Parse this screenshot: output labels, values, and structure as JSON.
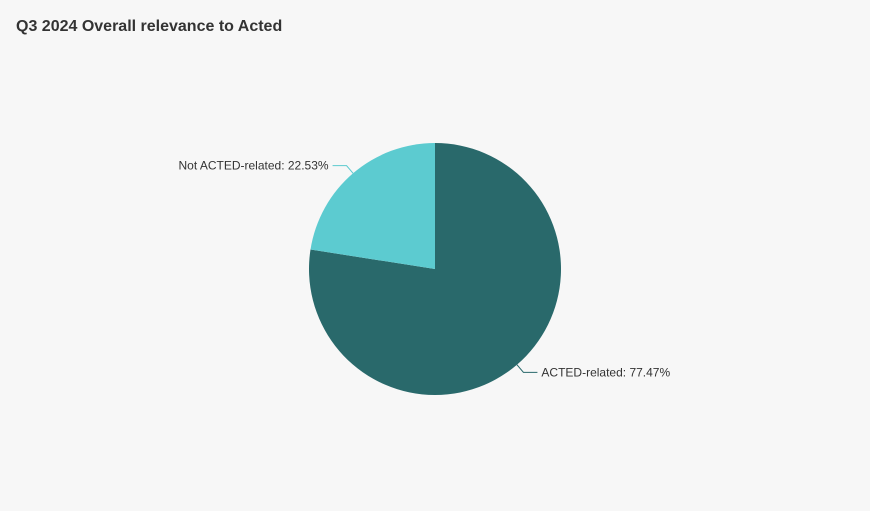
{
  "chart_data": {
    "type": "pie",
    "title": "Q3 2024 Overall relevance to Acted",
    "slices": [
      {
        "name": "ACTED-related",
        "value": 77.47,
        "label": "ACTED-related: 77.47%",
        "color": "#29696b"
      },
      {
        "name": "Not ACTED-related",
        "value": 22.53,
        "label": "Not ACTED-related: 22.53%",
        "color": "#5ccbd0"
      }
    ],
    "start_angle": "12 o'clock",
    "direction": "clockwise",
    "legend": "none"
  },
  "colors": {
    "background": "#f7f7f7",
    "title": "#333333",
    "label_text": "#333333"
  }
}
